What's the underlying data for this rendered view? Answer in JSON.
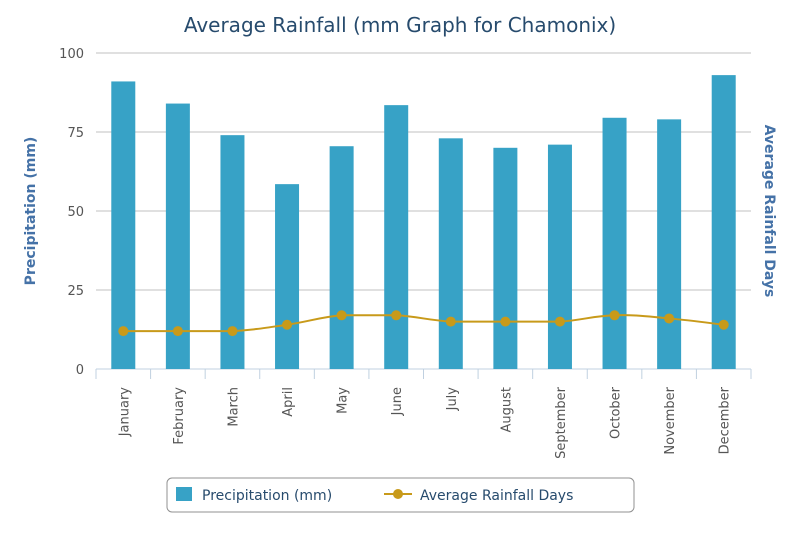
{
  "chart_data": {
    "type": "bar",
    "title": "Average Rainfall (mm Graph for Chamonix)",
    "categories": [
      "January",
      "February",
      "March",
      "April",
      "May",
      "June",
      "July",
      "August",
      "September",
      "October",
      "November",
      "December"
    ],
    "y_left": {
      "label": "Precipitation (mm)",
      "range": [
        0,
        100
      ],
      "ticks": [
        0,
        25,
        50,
        75,
        100
      ]
    },
    "y_right": {
      "label": "Average Rainfall Days"
    },
    "series": [
      {
        "name": "Precipitation (mm)",
        "type": "bar",
        "color": "#37a2c6",
        "values": [
          91,
          84,
          74,
          58.5,
          70.5,
          83.5,
          73,
          70,
          71,
          79.5,
          79,
          93
        ]
      },
      {
        "name": "Average Rainfall Days",
        "type": "line",
        "color": "#c89a1a",
        "values": [
          12,
          12,
          12,
          14,
          17,
          17,
          15,
          15,
          15,
          17,
          16,
          14
        ]
      }
    ],
    "grid": true,
    "legend_position": "bottom"
  }
}
